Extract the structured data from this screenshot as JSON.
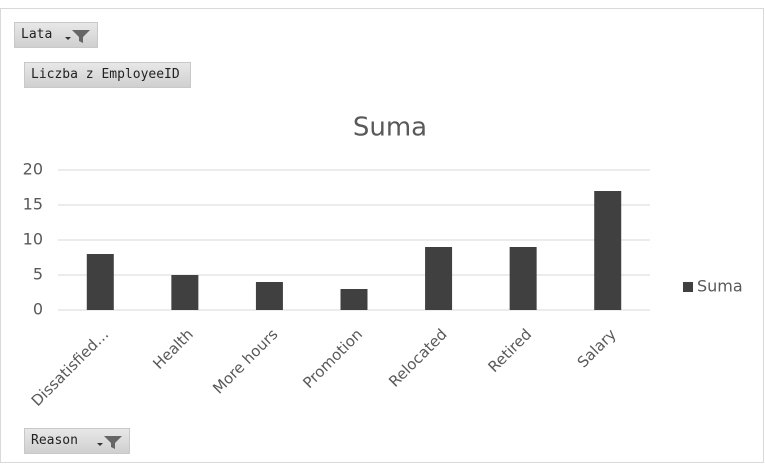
{
  "field_buttons": {
    "filter": "Lata",
    "values": "Liczba z EmployeeID",
    "axis": "Reason"
  },
  "chart_data": {
    "type": "bar",
    "title": "Suma",
    "categories": [
      "Dissatisfied…",
      "Health",
      "More hours",
      "Promotion",
      "Relocated",
      "Retired",
      "Salary"
    ],
    "series": [
      {
        "name": "Suma",
        "color": "#404040",
        "values": [
          8,
          5,
          4,
          3,
          9,
          9,
          17
        ]
      }
    ],
    "ylim": [
      0,
      20
    ],
    "yticks": [
      0,
      5,
      10,
      15,
      20
    ],
    "grid": true,
    "legend": "right"
  }
}
